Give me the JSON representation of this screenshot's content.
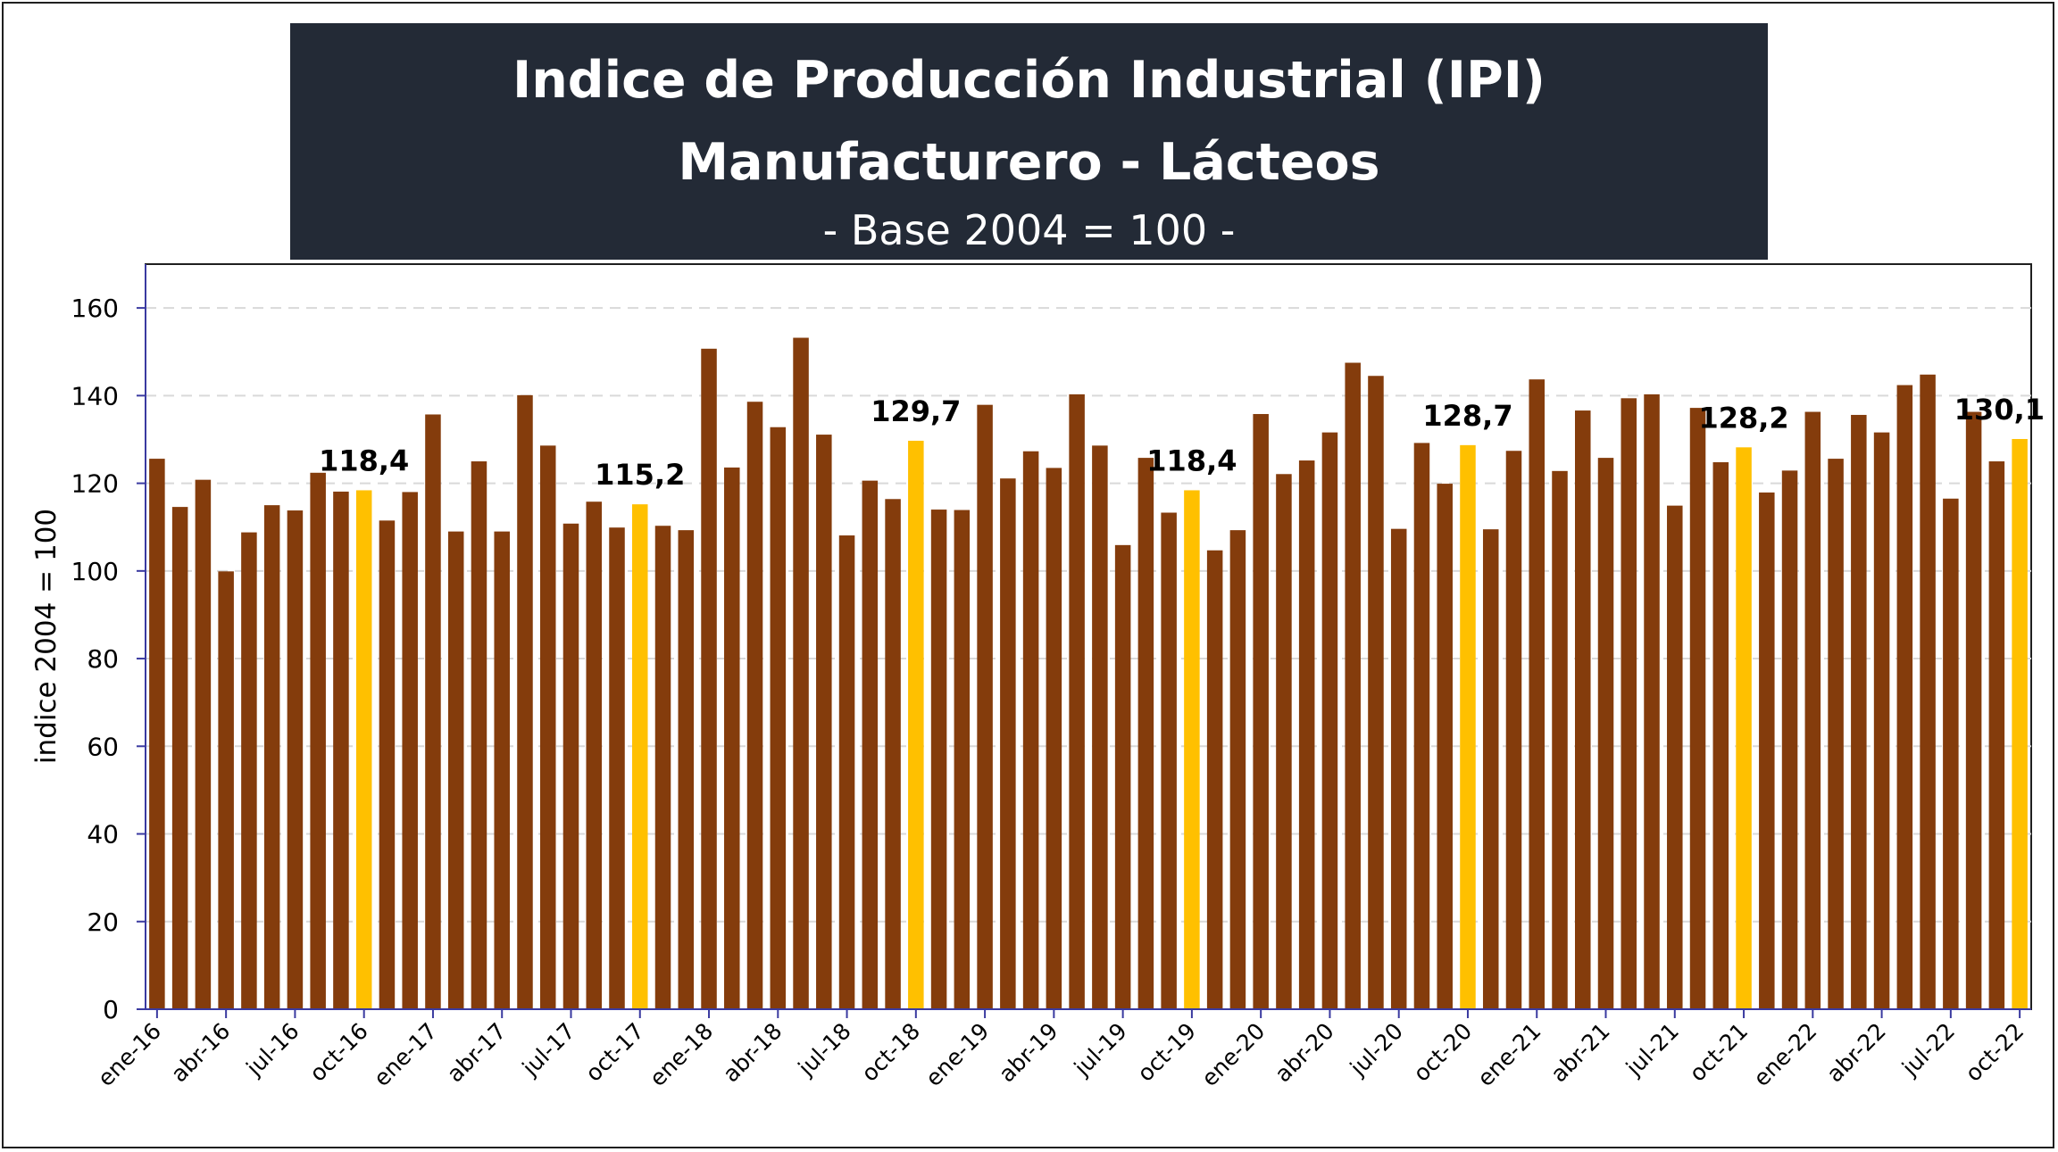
{
  "chart_data": {
    "type": "bar",
    "title": "Indice de Producción Industrial (IPI) Manufacturero - Lácteos",
    "subtitle": "- Base 2004 = 100 -",
    "xlabel": "",
    "ylabel": "indice 2004 = 100",
    "ylim": [
      0,
      170
    ],
    "yticks": [
      0,
      20,
      40,
      60,
      80,
      100,
      120,
      140,
      160
    ],
    "grid": true,
    "legend": "none",
    "colors": {
      "default": "#843c0c",
      "highlight": "#ffc000",
      "grid": "#d9d9d9",
      "axis": "#3a3aa0",
      "title_bg": "#232a36"
    },
    "categories": [
      "ene-16",
      "feb-16",
      "mar-16",
      "abr-16",
      "may-16",
      "jun-16",
      "jul-16",
      "ago-16",
      "sep-16",
      "oct-16",
      "nov-16",
      "dic-16",
      "ene-17",
      "feb-17",
      "mar-17",
      "abr-17",
      "may-17",
      "jun-17",
      "jul-17",
      "ago-17",
      "sep-17",
      "oct-17",
      "nov-17",
      "dic-17",
      "ene-18",
      "feb-18",
      "mar-18",
      "abr-18",
      "may-18",
      "jun-18",
      "jul-18",
      "ago-18",
      "sep-18",
      "oct-18",
      "nov-18",
      "dic-18",
      "ene-19",
      "feb-19",
      "mar-19",
      "abr-19",
      "may-19",
      "jun-19",
      "jul-19",
      "ago-19",
      "sep-19",
      "oct-19",
      "nov-19",
      "dic-19",
      "ene-20",
      "feb-20",
      "mar-20",
      "abr-20",
      "may-20",
      "jun-20",
      "jul-20",
      "ago-20",
      "sep-20",
      "oct-20",
      "nov-20",
      "dic-20",
      "ene-21",
      "feb-21",
      "mar-21",
      "abr-21",
      "may-21",
      "jun-21",
      "jul-21",
      "ago-21",
      "sep-21",
      "oct-21",
      "nov-21",
      "dic-21",
      "ene-22",
      "feb-22",
      "mar-22",
      "abr-22",
      "may-22",
      "jun-22",
      "jul-22",
      "ago-22",
      "sep-22",
      "oct-22"
    ],
    "tick_labels": [
      "ene-16",
      "abr-16",
      "jul-16",
      "oct-16",
      "ene-17",
      "abr-17",
      "jul-17",
      "oct-17",
      "ene-18",
      "abr-18",
      "jul-18",
      "oct-18",
      "ene-19",
      "abr-19",
      "jul-19",
      "oct-19",
      "ene-20",
      "abr-20",
      "jul-20",
      "oct-20",
      "ene-21",
      "abr-21",
      "jul-21",
      "oct-21",
      "ene-22",
      "abr-22",
      "jul-22",
      "oct-22"
    ],
    "values": [
      125.6,
      114.6,
      120.8,
      99.9,
      108.8,
      115.0,
      113.8,
      122.4,
      118.1,
      118.4,
      111.5,
      118.0,
      135.7,
      109.0,
      125.0,
      109.0,
      140.1,
      128.6,
      110.8,
      115.8,
      109.9,
      115.2,
      110.3,
      109.3,
      150.7,
      123.6,
      138.6,
      132.8,
      153.2,
      131.1,
      108.1,
      120.6,
      116.4,
      129.7,
      114.0,
      113.9,
      137.9,
      121.1,
      127.3,
      123.5,
      140.3,
      128.6,
      105.9,
      125.8,
      113.3,
      118.4,
      104.7,
      109.3,
      135.8,
      122.1,
      125.2,
      131.6,
      147.5,
      144.5,
      109.6,
      129.2,
      119.9,
      128.7,
      109.5,
      127.4,
      143.7,
      122.8,
      136.6,
      125.8,
      139.4,
      140.3,
      114.9,
      137.2,
      124.8,
      128.2,
      117.9,
      122.9,
      136.3,
      125.6,
      135.6,
      131.6,
      142.4,
      144.8,
      116.5,
      136.3,
      125.0,
      130.1
    ],
    "highlight_indices": [
      9,
      21,
      33,
      45,
      57,
      69,
      81
    ],
    "data_labels": [
      {
        "index": 9,
        "text": "118,4"
      },
      {
        "index": 21,
        "text": "115,2"
      },
      {
        "index": 33,
        "text": "129,7"
      },
      {
        "index": 45,
        "text": "118,4"
      },
      {
        "index": 57,
        "text": "128,7"
      },
      {
        "index": 69,
        "text": "128,2"
      },
      {
        "index": 81,
        "text": "130,1"
      }
    ]
  }
}
